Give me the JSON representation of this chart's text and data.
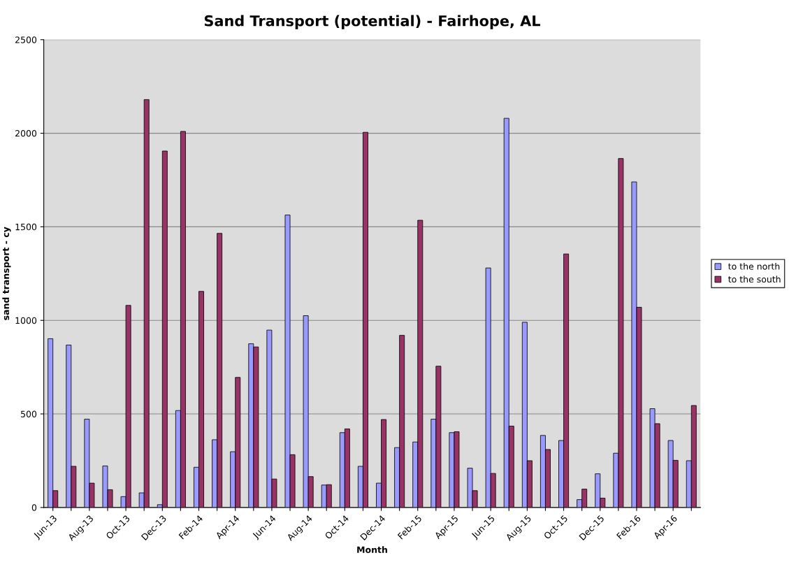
{
  "chart_data": {
    "type": "bar",
    "title": "Sand Transport (potential) - Fairhope, AL",
    "xlabel": "Month",
    "ylabel": "sand transport - cy",
    "categories": [
      "Jun-13",
      null,
      "Aug-13",
      null,
      "Oct-13",
      null,
      "Dec-13",
      null,
      "Feb-14",
      null,
      "Apr-14",
      null,
      "Jun-14",
      null,
      "Aug-14",
      null,
      "Oct-14",
      null,
      "Dec-14",
      null,
      "Feb-15",
      null,
      "Apr-15",
      null,
      "Jun-15",
      null,
      "Aug-15",
      null,
      "Oct-15",
      null,
      "Dec-15",
      null,
      "Feb-16",
      null,
      "Apr-16",
      null
    ],
    "series": [
      {
        "name": "to the north",
        "color": "#9999ff",
        "values": [
          902,
          868,
          472,
          222,
          58,
          78,
          15,
          518,
          215,
          362,
          298,
          875,
          948,
          1563,
          1025,
          120,
          400,
          220,
          130,
          320,
          350,
          472,
          400,
          210,
          1280,
          2080,
          990,
          385,
          358,
          42,
          180,
          290,
          1740,
          528,
          358,
          250
        ]
      },
      {
        "name": "to the south",
        "color": "#993366",
        "values": [
          90,
          220,
          130,
          95,
          1080,
          2180,
          1905,
          2010,
          1155,
          1465,
          695,
          858,
          152,
          282,
          165,
          122,
          420,
          2005,
          470,
          920,
          1535,
          755,
          405,
          90,
          182,
          435,
          250,
          310,
          1355,
          98,
          50,
          1865,
          1070,
          448,
          252,
          545
        ]
      }
    ],
    "ylim": [
      0,
      2500
    ],
    "yticks": [
      0,
      500,
      1000,
      1500,
      2000,
      2500
    ],
    "grid": "y",
    "legend": "right"
  }
}
